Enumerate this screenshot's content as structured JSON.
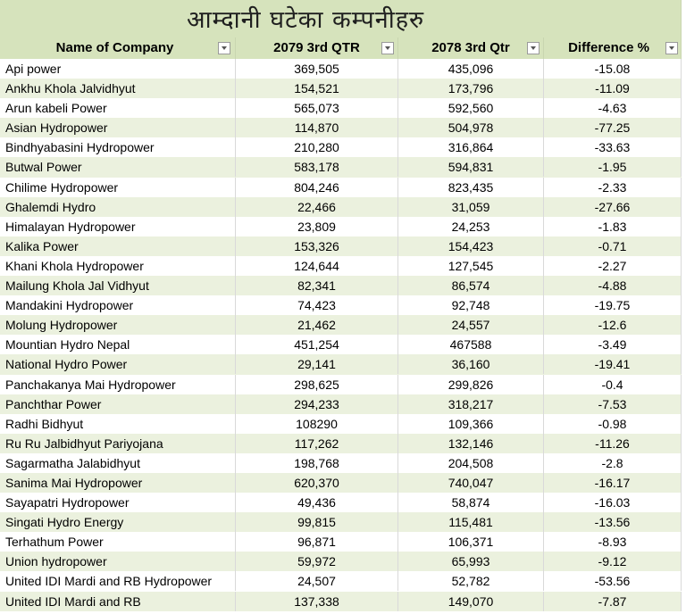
{
  "title": "आम्दानी घटेका कम्पनीहरु",
  "columns": [
    "Name of Company",
    "2079 3rd QTR",
    "2078 3rd Qtr",
    "Difference %"
  ],
  "colors": {
    "header_bg": "#d6e3bc",
    "band_bg": "#ebf1de"
  },
  "rows": [
    [
      "Api power",
      "369,505",
      "435,096",
      "-15.08"
    ],
    [
      "Ankhu Khola Jalvidhyut",
      "154,521",
      "173,796",
      "-11.09"
    ],
    [
      "Arun kabeli Power",
      "565,073",
      "592,560",
      "-4.63"
    ],
    [
      "Asian Hydropower",
      "114,870",
      "504,978",
      "-77.25"
    ],
    [
      "Bindhyabasini Hydropower",
      "210,280",
      "316,864",
      "-33.63"
    ],
    [
      "Butwal Power",
      "583,178",
      "594,831",
      "-1.95"
    ],
    [
      "Chilime Hydropower",
      "804,246",
      "823,435",
      "-2.33"
    ],
    [
      "Ghalemdi Hydro",
      "22,466",
      "31,059",
      "-27.66"
    ],
    [
      "Himalayan Hydropower",
      "23,809",
      "24,253",
      "-1.83"
    ],
    [
      "Kalika Power",
      "153,326",
      "154,423",
      "-0.71"
    ],
    [
      "Khani Khola Hydropower",
      "124,644",
      "127,545",
      "-2.27"
    ],
    [
      "Mailung Khola Jal Vidhyut",
      "82,341",
      "86,574",
      "-4.88"
    ],
    [
      "Mandakini Hydropower",
      "74,423",
      "92,748",
      "-19.75"
    ],
    [
      "Molung Hydropower",
      "21,462",
      "24,557",
      "-12.6"
    ],
    [
      "Mountian Hydro Nepal",
      "451,254",
      "467588",
      "-3.49"
    ],
    [
      "National Hydro Power",
      "29,141",
      "36,160",
      "-19.41"
    ],
    [
      "Panchakanya Mai Hydropower",
      "298,625",
      "299,826",
      "-0.4"
    ],
    [
      "Panchthar Power",
      "294,233",
      "318,217",
      "-7.53"
    ],
    [
      "Radhi Bidhyut",
      "108290",
      "109,366",
      "-0.98"
    ],
    [
      "Ru Ru Jalbidhyut Pariyojana",
      "117,262",
      "132,146",
      "-11.26"
    ],
    [
      "Sagarmatha Jalabidhyut",
      "198,768",
      "204,508",
      "-2.8"
    ],
    [
      "Sanima Mai Hydropower",
      "620,370",
      "740,047",
      "-16.17"
    ],
    [
      "Sayapatri Hydropower",
      "49,436",
      "58,874",
      "-16.03"
    ],
    [
      "Singati Hydro Energy",
      "99,815",
      "115,481",
      "-13.56"
    ],
    [
      "Terhathum Power",
      "96,871",
      "106,371",
      "-8.93"
    ],
    [
      "Union hydropower",
      "59,972",
      "65,993",
      "-9.12"
    ],
    [
      "United IDI Mardi and RB Hydropower",
      "24,507",
      "52,782",
      "-53.56"
    ],
    [
      "United IDI Mardi and RB",
      "137,338",
      "149,070",
      "-7.87"
    ]
  ]
}
